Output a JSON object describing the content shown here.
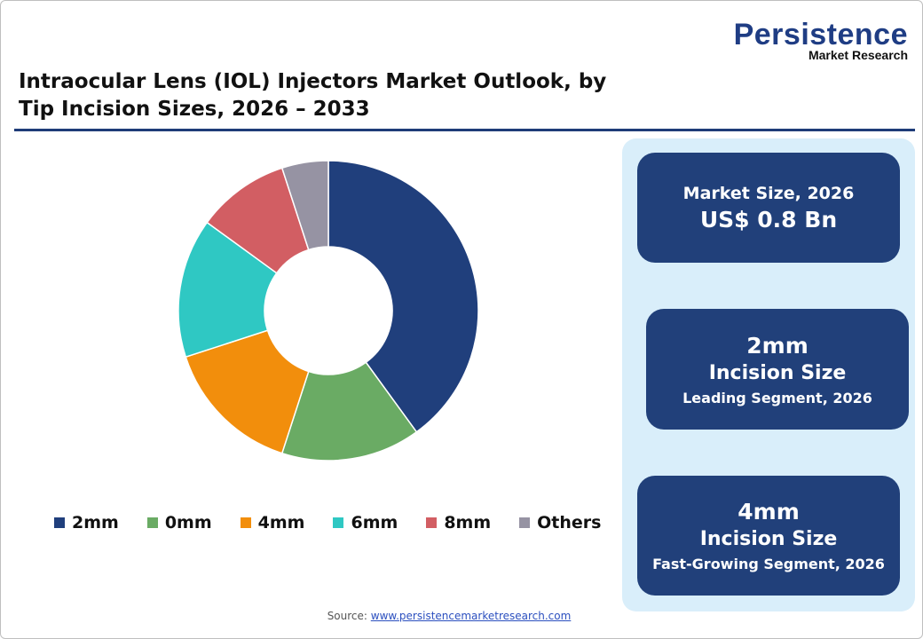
{
  "logo": {
    "line1": "Persistence",
    "line2": "Market Research"
  },
  "title": "Intraocular Lens (IOL) Injectors Market Outlook, by Tip Incision Sizes, 2026 – 2033",
  "chart_data": {
    "type": "pie",
    "donut": true,
    "categories": [
      "2mm",
      "0mm",
      "4mm",
      "6mm",
      "8mm",
      "Others"
    ],
    "values": [
      40,
      15,
      15,
      15,
      10,
      5
    ],
    "colors": [
      "#203f7c",
      "#6aab64",
      "#f28e0c",
      "#2fc8c3",
      "#d25e63",
      "#9693a3"
    ],
    "legend": "bottom"
  },
  "cards": [
    {
      "label": "Market Size, 2026",
      "value": "US$ 0.8 Bn"
    },
    {
      "value": "2mm",
      "label": "Incision Size",
      "sub": "Leading Segment, 2026"
    },
    {
      "value": "4mm",
      "label": "Incision Size",
      "sub": "Fast-Growing Segment, 2026"
    }
  ],
  "source": {
    "prefix": "Source: ",
    "link": "www.persistencemarketresearch.com"
  }
}
